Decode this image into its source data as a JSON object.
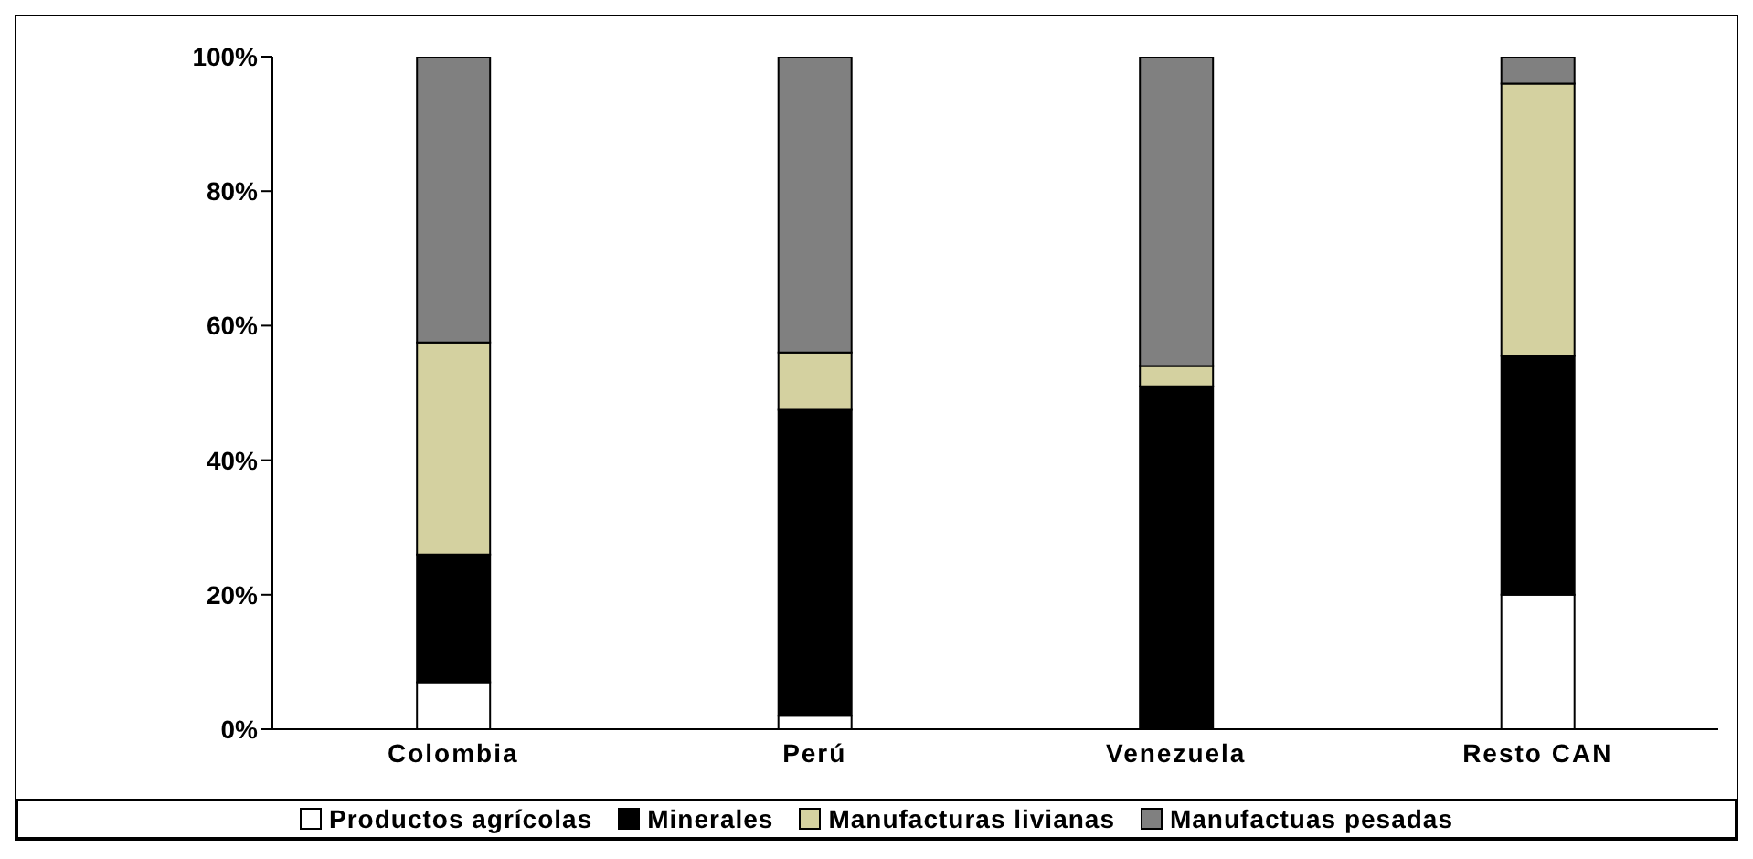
{
  "chart_data": {
    "type": "bar",
    "stacked": true,
    "categories": [
      "Colombia",
      "Perú",
      "Venezuela",
      "Resto CAN"
    ],
    "series": [
      {
        "name": "Productos agrícolas",
        "color": "#ffffff",
        "values": [
          7,
          2,
          0,
          20
        ]
      },
      {
        "name": "Minerales",
        "color": "#000000",
        "values": [
          19,
          45.5,
          51,
          35.5
        ]
      },
      {
        "name": "Manufacturas livianas",
        "color": "#d4d1a0",
        "values": [
          31.5,
          8.5,
          3,
          40.5
        ]
      },
      {
        "name": "Manufactuas pesadas",
        "color": "#808080",
        "values": [
          42.5,
          44,
          46,
          4
        ]
      }
    ],
    "ylim": [
      0,
      100
    ],
    "yticks": [
      {
        "value": 0,
        "label": "0%"
      },
      {
        "value": 20,
        "label": "20%"
      },
      {
        "value": 40,
        "label": "40%"
      },
      {
        "value": 60,
        "label": "60%"
      },
      {
        "value": 80,
        "label": "80%"
      },
      {
        "value": 100,
        "label": "100%"
      }
    ],
    "grid": false,
    "legend": "bottom"
  }
}
